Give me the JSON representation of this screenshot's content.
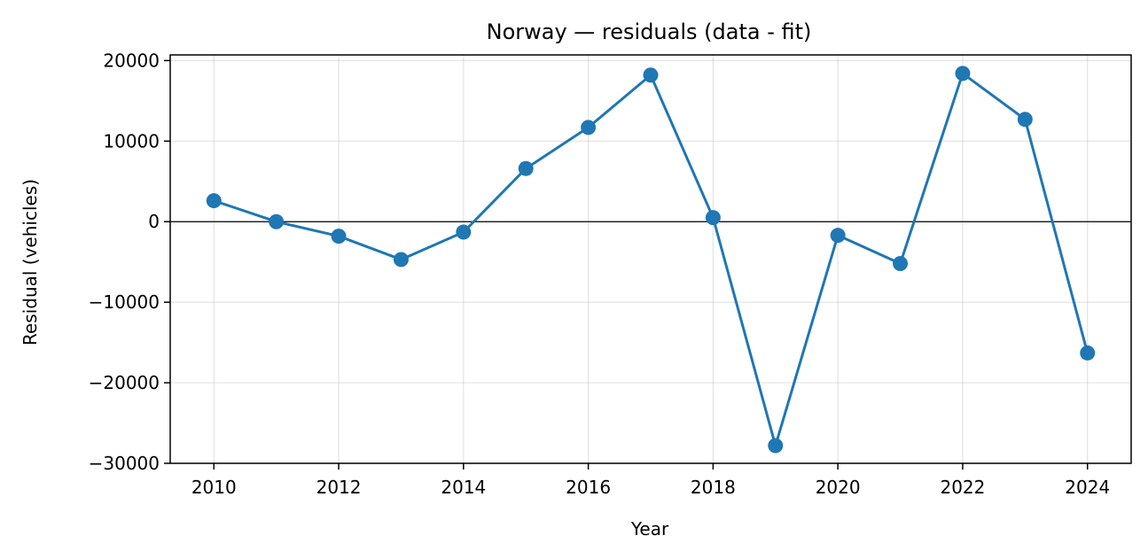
{
  "chart_data": {
    "type": "line",
    "title": "Norway — residuals (data - fit)",
    "xlabel": "Year",
    "ylabel": "Residual (vehicles)",
    "x": [
      2010,
      2011,
      2012,
      2013,
      2014,
      2015,
      2016,
      2017,
      2018,
      2019,
      2020,
      2021,
      2022,
      2023,
      2024
    ],
    "series": [
      {
        "values": [
          2600,
          0,
          -1800,
          -4700,
          -1300,
          6600,
          11700,
          18200,
          500,
          -27800,
          -1700,
          -5200,
          18400,
          12700,
          -16300
        ],
        "color": "#1f77b4",
        "marker": "circle"
      }
    ],
    "xlim": [
      2009.3,
      2024.7
    ],
    "ylim": [
      -30000,
      20700
    ],
    "xticks": [
      2010,
      2012,
      2014,
      2016,
      2018,
      2020,
      2022,
      2024
    ],
    "xtick_labels": [
      "2010",
      "2012",
      "2014",
      "2016",
      "2018",
      "2020",
      "2022",
      "2024"
    ],
    "yticks": [
      20000,
      10000,
      0,
      -10000,
      -20000,
      -30000
    ],
    "ytick_labels": [
      "20000",
      "10000",
      "0",
      "−10000",
      "−20000",
      "−30000"
    ],
    "zero_line": true,
    "grid": true,
    "legend": false
  }
}
